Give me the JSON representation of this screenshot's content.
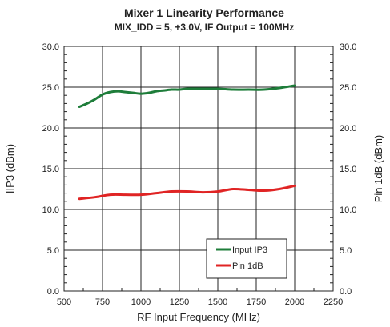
{
  "chart_data": {
    "type": "line",
    "title": "Mixer 1 Linearity Performance",
    "subtitle": "MIX_IDD = 5, +3.0V, IF Output = 100MHz",
    "xlabel": "RF Input Frequency (MHz)",
    "ylabel_left": "IIP3 (dBm)",
    "ylabel_right": "Pin 1dB (dBm)",
    "xlim": [
      500,
      2250
    ],
    "ylim": [
      0,
      30
    ],
    "x_ticks": [
      500,
      750,
      1000,
      1250,
      1500,
      1750,
      2000,
      2250
    ],
    "x_tick_labels": [
      "500",
      "750",
      "1000",
      "1250",
      "1500",
      "1750",
      "2000",
      "2250"
    ],
    "y_ticks": [
      0,
      5,
      10,
      15,
      20,
      25,
      30
    ],
    "y_tick_labels": [
      "0.0",
      "5.0",
      "10.0",
      "15.0",
      "20.0",
      "25.0",
      "30.0"
    ],
    "grid": true,
    "legend_position": "bottom-right",
    "series": [
      {
        "name": "Input IP3",
        "color": "#1e7d3a",
        "x": [
          600,
          650,
          700,
          750,
          800,
          850,
          900,
          950,
          1000,
          1050,
          1100,
          1150,
          1200,
          1250,
          1300,
          1400,
          1500,
          1600,
          1700,
          1800,
          1900,
          2000
        ],
        "y": [
          22.6,
          23.0,
          23.5,
          24.1,
          24.4,
          24.5,
          24.4,
          24.3,
          24.2,
          24.3,
          24.5,
          24.6,
          24.7,
          24.7,
          24.8,
          24.8,
          24.8,
          24.7,
          24.7,
          24.7,
          24.9,
          25.2
        ]
      },
      {
        "name": "Pin 1dB",
        "color": "#e02424",
        "x": [
          600,
          700,
          800,
          900,
          1000,
          1100,
          1200,
          1300,
          1400,
          1500,
          1600,
          1700,
          1800,
          1900,
          2000
        ],
        "y": [
          11.3,
          11.5,
          11.8,
          11.8,
          11.8,
          12.0,
          12.2,
          12.2,
          12.1,
          12.2,
          12.5,
          12.4,
          12.3,
          12.5,
          12.9
        ]
      }
    ]
  }
}
